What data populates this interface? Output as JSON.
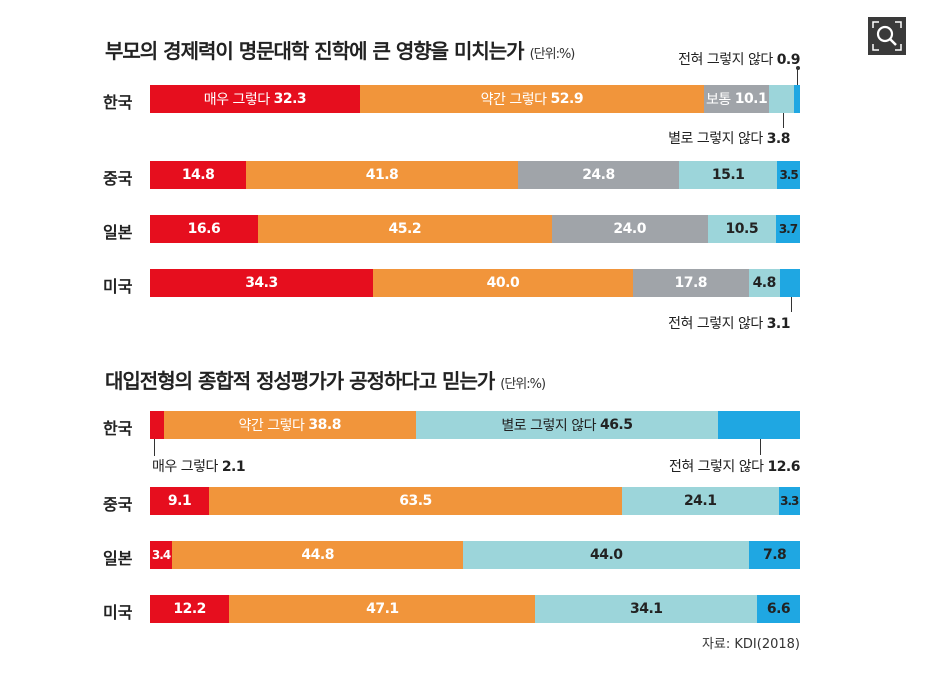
{
  "colors": {
    "very": "#e60e1e",
    "somewhat": "#f1953b",
    "neutral": "#a0a4a9",
    "notmuch": "#9cd5da",
    "notatall": "#1fa7e2"
  },
  "toolbar": {
    "zoom_icon": "magnifier-icon"
  },
  "source": "자료: KDI(2018)",
  "chart_data": [
    {
      "type": "bar",
      "stacked": true,
      "orientation": "horizontal",
      "title": "부모의 경제력이 명문대학 진학에 큰 영향을 미치는가",
      "unit": "(단위:%)",
      "categories": [
        "한국",
        "중국",
        "일본",
        "미국"
      ],
      "series": [
        {
          "name": "매우 그렇다",
          "color_key": "very",
          "values": [
            32.3,
            14.8,
            16.6,
            34.3
          ]
        },
        {
          "name": "약간 그렇다",
          "color_key": "somewhat",
          "values": [
            52.9,
            41.8,
            45.2,
            40.0
          ]
        },
        {
          "name": "보통",
          "color_key": "neutral",
          "values": [
            10.1,
            24.8,
            24.0,
            17.8
          ]
        },
        {
          "name": "별로 그렇지 않다",
          "color_key": "notmuch",
          "values": [
            3.8,
            15.1,
            10.5,
            4.8
          ]
        },
        {
          "name": "전혀 그렇지 않다",
          "color_key": "notatall",
          "values": [
            0.9,
            3.5,
            3.7,
            3.1
          ]
        }
      ]
    },
    {
      "type": "bar",
      "stacked": true,
      "orientation": "horizontal",
      "title": "대입전형의 종합적 정성평가가 공정하다고 믿는가",
      "unit": "(단위:%)",
      "categories": [
        "한국",
        "중국",
        "일본",
        "미국"
      ],
      "series": [
        {
          "name": "매우 그렇다",
          "color_key": "very",
          "values": [
            2.1,
            9.1,
            3.4,
            12.2
          ]
        },
        {
          "name": "약간 그렇다",
          "color_key": "somewhat",
          "values": [
            38.8,
            63.5,
            44.8,
            47.1
          ]
        },
        {
          "name": "별로 그렇지 않다",
          "color_key": "notmuch",
          "values": [
            46.5,
            24.1,
            44.0,
            34.1
          ]
        },
        {
          "name": "전혀 그렇지 않다",
          "color_key": "notatall",
          "values": [
            12.6,
            3.3,
            7.8,
            6.6
          ]
        }
      ]
    }
  ]
}
